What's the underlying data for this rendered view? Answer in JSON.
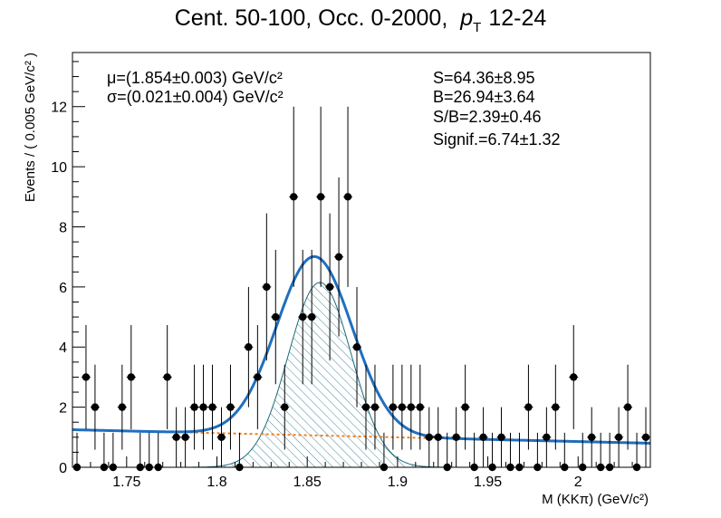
{
  "title": {
    "prefix": "Cent. 50-100, Occ. 0-2000,",
    "pt_symbol": "p",
    "pt_sub": "T",
    "pt_range": "12-24"
  },
  "chart_data": {
    "type": "scatter",
    "xlabel": "M (KKπ) (GeV/c²)",
    "ylabel": "Events / ( 0.005 GeV/c² )",
    "xlim": [
      1.72,
      2.04
    ],
    "ylim": [
      0,
      13.8
    ],
    "x_ticks": [
      "1.75",
      "1.8",
      "1.85",
      "1.9",
      "1.95",
      "2"
    ],
    "y_ticks": [
      "0",
      "2",
      "4",
      "6",
      "8",
      "10",
      "12"
    ],
    "series": [
      {
        "kind": "data",
        "bin_width": 0.005,
        "x": [
          1.7225,
          1.7275,
          1.7325,
          1.7375,
          1.7425,
          1.7475,
          1.7525,
          1.7575,
          1.7625,
          1.7675,
          1.7725,
          1.7775,
          1.7825,
          1.7875,
          1.7925,
          1.7975,
          1.8025,
          1.8075,
          1.8125,
          1.8175,
          1.8225,
          1.8275,
          1.8325,
          1.8375,
          1.8425,
          1.8475,
          1.8525,
          1.8575,
          1.8625,
          1.8675,
          1.8725,
          1.8775,
          1.8825,
          1.8875,
          1.8925,
          1.8975,
          1.9025,
          1.9075,
          1.9125,
          1.9175,
          1.9225,
          1.9275,
          1.9325,
          1.9375,
          1.9425,
          1.9475,
          1.9525,
          1.9575,
          1.9625,
          1.9675,
          1.9725,
          1.9775,
          1.9825,
          1.9875,
          1.9925,
          1.9975,
          2.0025,
          2.0075,
          2.0125,
          2.0175,
          2.0225,
          2.0275,
          2.0325,
          2.0375
        ],
        "y": [
          0,
          3,
          2,
          0,
          0,
          2,
          3,
          0,
          0,
          0,
          3,
          1,
          1,
          2,
          2,
          2,
          1,
          2,
          0,
          4,
          3,
          6,
          5,
          2,
          9,
          5,
          5,
          9,
          6,
          7,
          9,
          4,
          2,
          2,
          0,
          2,
          2,
          2,
          2,
          1,
          1,
          0,
          1,
          2,
          0,
          1,
          0,
          1,
          0,
          0,
          2,
          0,
          1,
          2,
          0,
          3,
          0,
          1,
          0,
          0,
          1,
          2,
          0,
          1
        ]
      },
      {
        "kind": "total-fit",
        "name": "total fit",
        "mean": 1.854,
        "sigma": 0.021,
        "amplitude": 5.95,
        "background": "0.8 + 0.45*(2.04 - x)/0.32",
        "color": "#1f6fbf"
      },
      {
        "kind": "signal",
        "name": "signal",
        "mean": 1.857,
        "sigma": 0.0175,
        "amplitude": 6.15,
        "color": "#1b6a7a"
      },
      {
        "kind": "background",
        "name": "background",
        "range": [
          1.785,
          1.94
        ],
        "color": "#f07f1a"
      }
    ],
    "annotations": {
      "mu": "μ=(1.854±0.003) GeV/c²",
      "sigma": "σ=(0.021±0.004) GeV/c²",
      "S": "S=64.36±8.95",
      "B": "B=26.94±3.64",
      "SB": "S/B=2.39±0.46",
      "signif": "Signif.=6.74±1.32"
    }
  }
}
